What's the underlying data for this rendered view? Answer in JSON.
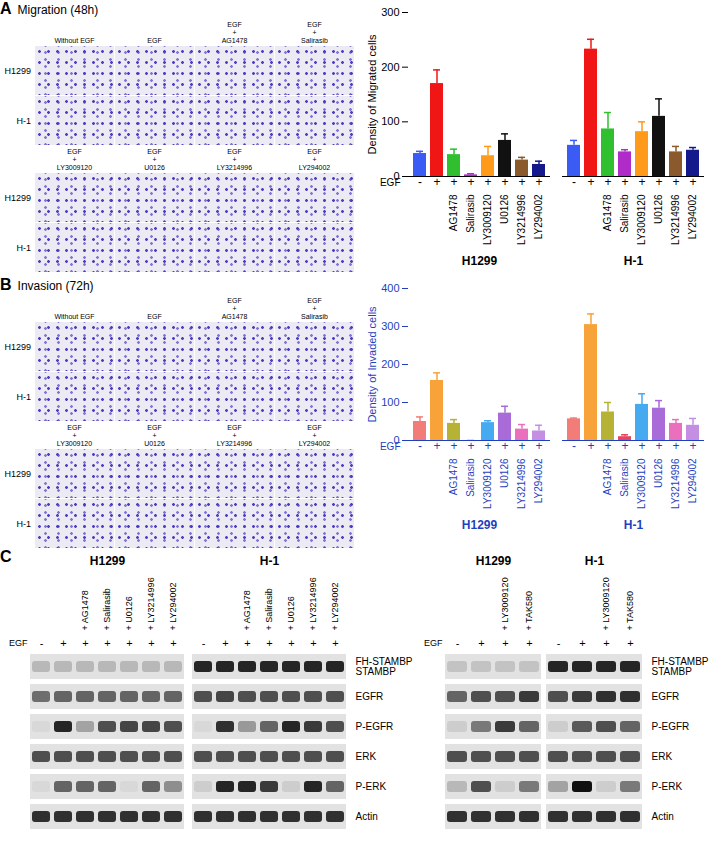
{
  "figure": {
    "panels": [
      {
        "label": "A",
        "title": "Migration (48h)",
        "images": {
          "rows": [
            "H1299",
            "H-1"
          ],
          "columns": [
            [
              "Without EGF"
            ],
            [
              "EGF"
            ],
            [
              "EGF",
              "+",
              "AG1478"
            ],
            [
              "EGF",
              "+",
              "Salirasib"
            ],
            [
              "EGF",
              "+",
              "LY3009120"
            ],
            [
              "EGF",
              "+",
              "U0126"
            ],
            [
              "EGF",
              "+",
              "LY3214996"
            ],
            [
              "EGF",
              "+",
              "LY294002"
            ]
          ]
        }
      },
      {
        "label": "B",
        "title": "Invasion (72h)",
        "images": {
          "rows": [
            "H1299",
            "H-1"
          ],
          "columns": [
            [
              "Without EGF"
            ],
            [
              "EGF"
            ],
            [
              "EGF",
              "+",
              "AG1478"
            ],
            [
              "EGF",
              "+",
              "Salirasib"
            ],
            [
              "EGF",
              "+",
              "LY3009120"
            ],
            [
              "EGF",
              "+",
              "U0126"
            ],
            [
              "EGF",
              "+",
              "LY3214996"
            ],
            [
              "EGF",
              "+",
              "LY294002"
            ]
          ]
        }
      },
      {
        "label": "C",
        "blots": [
          {
            "cell_lines": [
              "H1299",
              "H-1"
            ],
            "row_label": "EGF",
            "egf": [
              "-",
              "+",
              "+",
              "+",
              "+",
              "+",
              "+"
            ],
            "lanes": [
              null,
              null,
              "+ AG1478",
              "+ Salirasib",
              "+ U0126",
              "+ LY3214996",
              "+ LY294002"
            ],
            "intensity_range": [
              0,
              1
            ],
            "rows": [
              {
                "label": [
                  "FH-STAMBP",
                  "STAMBP"
                ],
                "intensity": [
                  0.2,
                  0.2,
                  0.2,
                  0.2,
                  0.2,
                  0.2,
                  0.2,
                  0.9,
                  0.9,
                  0.9,
                  0.9,
                  0.9,
                  0.9,
                  0.9
                ]
              },
              {
                "label": [
                  "EGFR"
                ],
                "intensity": [
                  0.55,
                  0.6,
                  0.6,
                  0.6,
                  0.6,
                  0.6,
                  0.6,
                  0.7,
                  0.75,
                  0.7,
                  0.7,
                  0.7,
                  0.7,
                  0.7
                ]
              },
              {
                "label": [
                  "P-EGFR"
                ],
                "intensity": [
                  0.05,
                  0.9,
                  0.3,
                  0.7,
                  0.75,
                  0.75,
                  0.7,
                  0.05,
                  0.85,
                  0.35,
                  0.6,
                  0.9,
                  0.8,
                  0.7
                ]
              },
              {
                "label": [
                  "ERK"
                ],
                "intensity": [
                  0.7,
                  0.7,
                  0.7,
                  0.7,
                  0.7,
                  0.7,
                  0.7,
                  0.7,
                  0.7,
                  0.7,
                  0.7,
                  0.7,
                  0.7,
                  0.7
                ]
              },
              {
                "label": [
                  "P-ERK"
                ],
                "intensity": [
                  0.05,
                  0.6,
                  0.6,
                  0.6,
                  0.05,
                  0.6,
                  0.4,
                  0.1,
                  0.9,
                  0.9,
                  0.8,
                  0.1,
                  0.9,
                  0.6
                ]
              },
              {
                "label": [
                  "Actin"
                ],
                "intensity": [
                  0.85,
                  0.85,
                  0.85,
                  0.85,
                  0.85,
                  0.85,
                  0.85,
                  0.85,
                  0.85,
                  0.85,
                  0.85,
                  0.85,
                  0.85,
                  0.85
                ]
              }
            ]
          },
          {
            "cell_lines": [
              "H1299",
              "H-1"
            ],
            "row_label": "EGF",
            "egf": [
              "-",
              "+",
              "+",
              "+"
            ],
            "lanes": [
              null,
              null,
              "+ LY3009120",
              "+ TAK580"
            ],
            "intensity_range": [
              0,
              1
            ],
            "rows": [
              {
                "label": [
                  "FH-STAMBP",
                  "STAMBP"
                ],
                "intensity": [
                  0.15,
                  0.15,
                  0.15,
                  0.15,
                  0.9,
                  0.9,
                  0.9,
                  0.9
                ]
              },
              {
                "label": [
                  "EGFR"
                ],
                "intensity": [
                  0.6,
                  0.7,
                  0.7,
                  0.8,
                  0.7,
                  0.8,
                  0.85,
                  0.85
                ]
              },
              {
                "label": [
                  "P-EGFR"
                ],
                "intensity": [
                  0.1,
                  0.5,
                  0.8,
                  0.6,
                  0.1,
                  0.65,
                  0.7,
                  0.6
                ]
              },
              {
                "label": [
                  "ERK"
                ],
                "intensity": [
                  0.7,
                  0.7,
                  0.7,
                  0.7,
                  0.7,
                  0.7,
                  0.7,
                  0.7
                ]
              },
              {
                "label": [
                  "P-ERK"
                ],
                "intensity": [
                  0.2,
                  0.7,
                  0.1,
                  0.5,
                  0.3,
                  1,
                  0.1,
                  0.5
                ]
              },
              {
                "label": [
                  "Actin"
                ],
                "intensity": [
                  0.85,
                  0.85,
                  0.85,
                  0.85,
                  0.85,
                  0.85,
                  0.85,
                  0.85
                ]
              }
            ]
          }
        ]
      }
    ]
  },
  "chart_data": [
    {
      "type": "bar",
      "ylabel": "Density of Migrated cells",
      "x_row_label": "EGF",
      "x_row": [
        "-",
        "+",
        "+",
        "+",
        "+",
        "+",
        "+",
        "+"
      ],
      "categories": [
        null,
        null,
        "AG1478",
        "Salirasib",
        "LY3009120",
        "U0126",
        "LY3214996",
        "LY294002"
      ],
      "colors": [
        "#3a5cf5",
        "#f01616",
        "#2fbf2f",
        "#b02cc9",
        "#ff9a1a",
        "#111111",
        "#8a5a2c",
        "#141a8c"
      ],
      "series": [
        {
          "name": "H1299",
          "values": [
            42,
            170,
            40,
            3,
            38,
            66,
            30,
            22
          ],
          "errors": [
            4,
            25,
            10,
            2,
            17,
            12,
            5,
            6
          ]
        },
        {
          "name": "H-1",
          "values": [
            57,
            233,
            87,
            45,
            82,
            110,
            45,
            48
          ],
          "errors": [
            9,
            18,
            30,
            4,
            18,
            32,
            10,
            5
          ]
        }
      ],
      "ylim": [
        0,
        300
      ],
      "yticks": [
        0,
        100,
        200,
        300
      ]
    },
    {
      "type": "bar",
      "ylabel": "Density of Invaded cells",
      "x_row_label": "EGF",
      "x_row": [
        "-",
        "+",
        "+",
        "+",
        "+",
        "+",
        "+",
        "+"
      ],
      "categories": [
        null,
        null,
        "AG1478",
        "Salirasib",
        "LY3009120",
        "U0126",
        "LY3214996",
        "LY294002"
      ],
      "colors": [
        "#f27c78",
        "#f7a33a",
        "#b5b236",
        "#e8445f",
        "#45aaf0",
        "#a86bd8",
        "#ea6fbc",
        "#c48ee3"
      ],
      "series": [
        {
          "name": "H1299",
          "values": [
            50,
            158,
            45,
            0,
            47,
            72,
            30,
            25
          ],
          "errors": [
            12,
            20,
            10,
            0,
            5,
            18,
            12,
            15
          ]
        },
        {
          "name": "H-1",
          "values": [
            57,
            305,
            75,
            10,
            95,
            85,
            45,
            40
          ],
          "errors": [
            2,
            28,
            25,
            5,
            28,
            20,
            10,
            18
          ]
        }
      ],
      "ylim": [
        0,
        400
      ],
      "yticks": [
        0,
        100,
        200,
        300,
        400
      ]
    }
  ]
}
